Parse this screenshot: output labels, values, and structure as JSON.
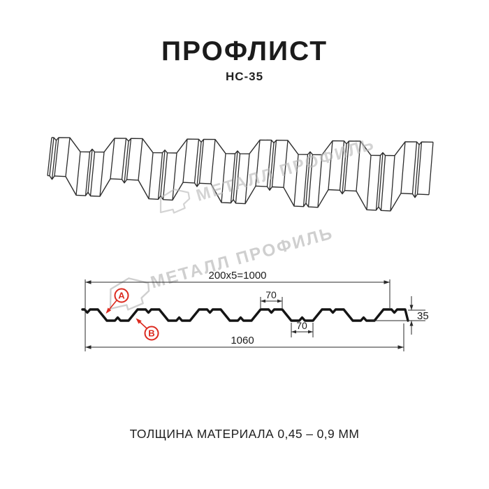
{
  "header": {
    "title": "ПРОФЛИСТ",
    "subtitle": "НС-35"
  },
  "watermark": {
    "text": "МЕТАЛЛ ПРОФИЛЬ"
  },
  "section": {
    "dim_top": "200x5=1000",
    "dim_crest_top": "70",
    "dim_valley_bottom": "70",
    "dim_total_width": "1060",
    "dim_height": "35",
    "label_a": "A",
    "label_b": "B"
  },
  "footer": {
    "thickness": "ТОЛЩИНА МАТЕРИАЛА 0,45 – 0,9 ММ"
  },
  "colors": {
    "accent_red": "#dc2a1f",
    "line_dark": "#2d2d2d",
    "profile_black": "#141414",
    "watermark_gray": "#c6c6c6"
  }
}
